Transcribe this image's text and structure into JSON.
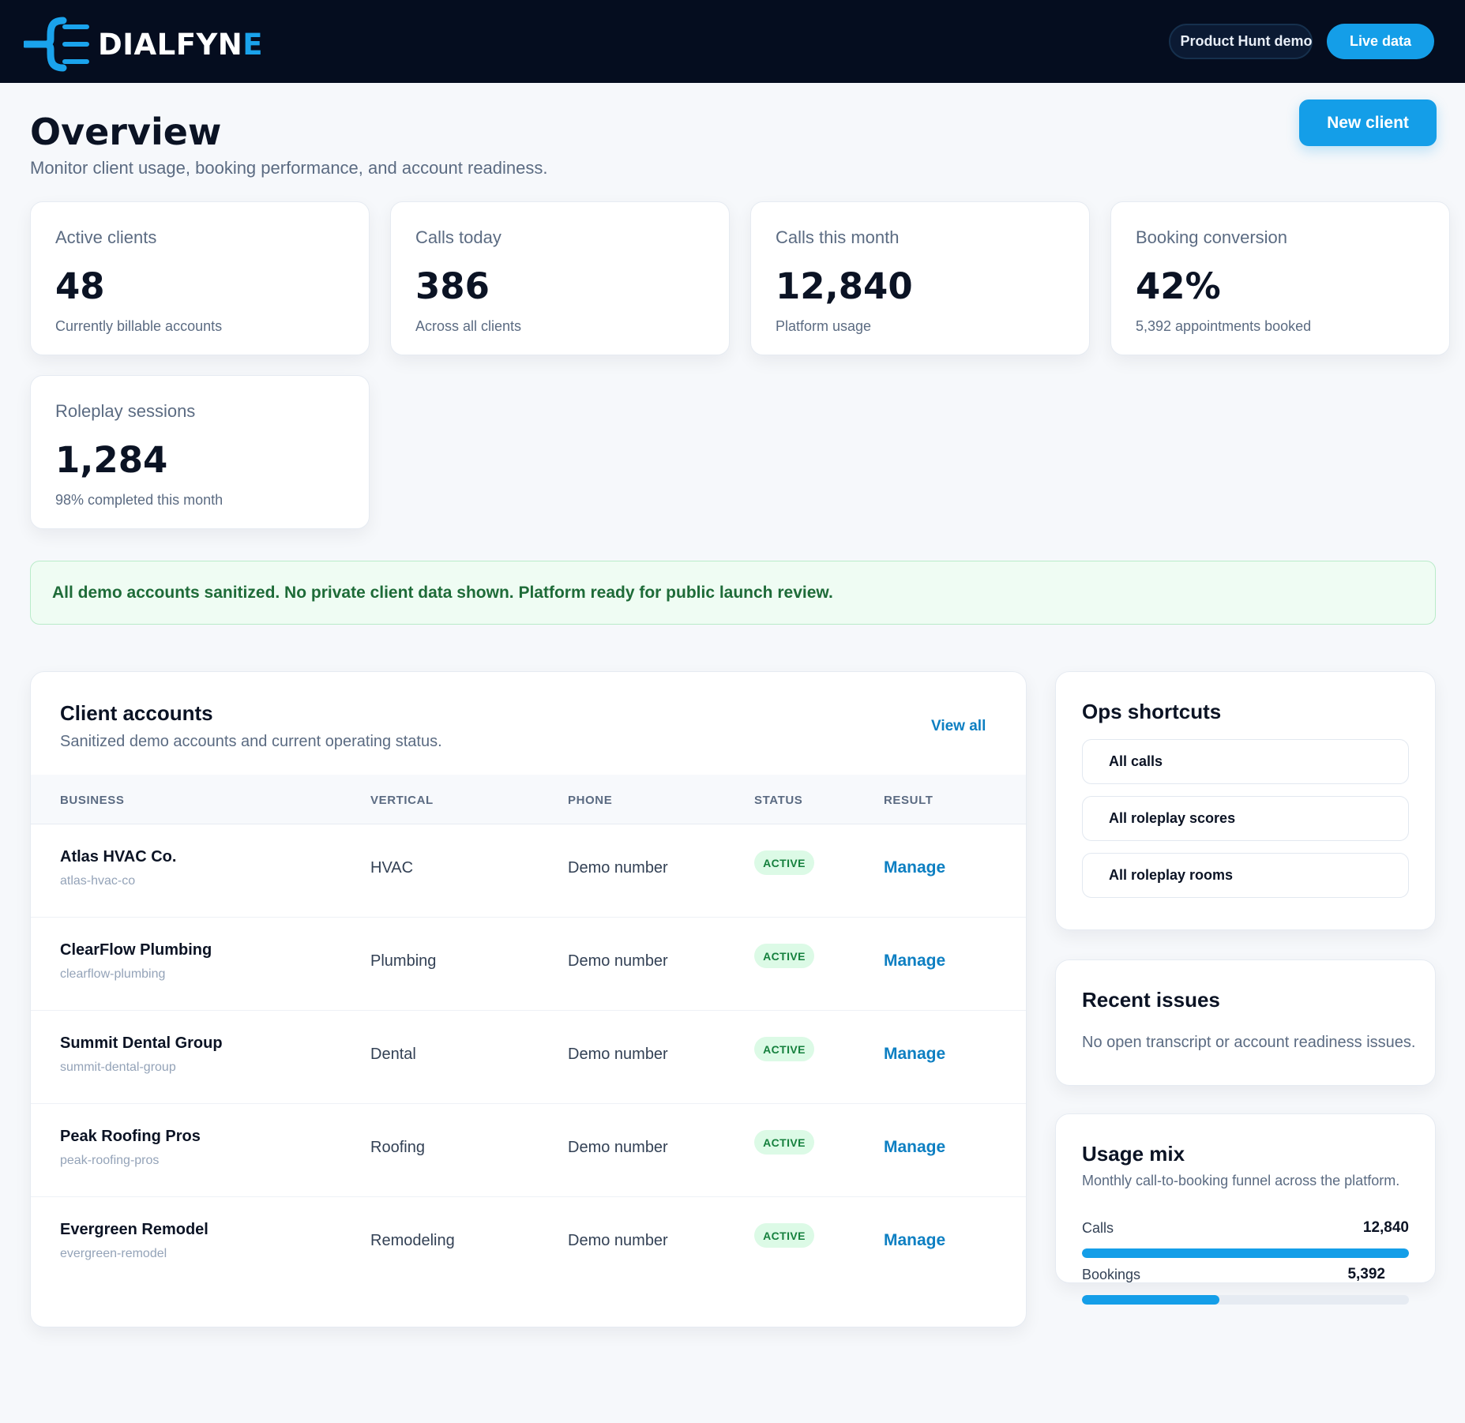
{
  "brand": {
    "name_prefix": "DIALFYN",
    "name_suffix": "E",
    "accent_color": "#1aa3ec",
    "logo_icon": "dialfyne-logo-icon"
  },
  "header": {
    "demo_label": "Product Hunt demo",
    "live_label": "Live data"
  },
  "page": {
    "title": "Overview",
    "subtitle": "Monitor client usage, booking performance, and account readiness.",
    "new_client_label": "New client"
  },
  "stats": [
    {
      "label": "Active clients",
      "value": "48",
      "note": "Currently billable accounts"
    },
    {
      "label": "Calls today",
      "value": "386",
      "note": "Across all clients"
    },
    {
      "label": "Calls this month",
      "value": "12,840",
      "note": "Platform usage"
    },
    {
      "label": "Booking conversion",
      "value": "42%",
      "note": "5,392 appointments booked"
    },
    {
      "label": "Roleplay sessions",
      "value": "1,284",
      "note": "98% completed this month"
    }
  ],
  "banner": {
    "text": "All demo accounts sanitized. No private client data shown. Platform ready for public launch review.",
    "color": "#1e6b38"
  },
  "clients": {
    "title": "Client accounts",
    "subtitle": "Sanitized demo accounts and current operating status.",
    "view_all": "View all",
    "columns": [
      "BUSINESS",
      "VERTICAL",
      "PHONE",
      "STATUS",
      "RESULT"
    ],
    "rows": [
      {
        "business": "Atlas HVAC Co.",
        "slug": "atlas-hvac-co",
        "vertical": "HVAC",
        "phone": "Demo number",
        "status": "ACTIVE",
        "action": "Manage"
      },
      {
        "business": "ClearFlow Plumbing",
        "slug": "clearflow-plumbing",
        "vertical": "Plumbing",
        "phone": "Demo number",
        "status": "ACTIVE",
        "action": "Manage"
      },
      {
        "business": "Summit Dental Group",
        "slug": "summit-dental-group",
        "vertical": "Dental",
        "phone": "Demo number",
        "status": "ACTIVE",
        "action": "Manage"
      },
      {
        "business": "Peak Roofing Pros",
        "slug": "peak-roofing-pros",
        "vertical": "Roofing",
        "phone": "Demo number",
        "status": "ACTIVE",
        "action": "Manage"
      },
      {
        "business": "Evergreen Remodel",
        "slug": "evergreen-remodel",
        "vertical": "Remodeling",
        "phone": "Demo number",
        "status": "ACTIVE",
        "action": "Manage"
      }
    ]
  },
  "ops": {
    "title": "Ops shortcuts",
    "items": [
      "All calls",
      "All roleplay scores",
      "All roleplay rooms"
    ]
  },
  "issues": {
    "title": "Recent issues",
    "text": "No open transcript or account readiness issues."
  },
  "usage": {
    "title": "Usage mix",
    "subtitle": "Monthly call-to-booking funnel across the platform.",
    "meters": [
      {
        "label": "Calls",
        "value": "12,840",
        "fraction": 1.0
      },
      {
        "label": "Bookings",
        "value": "5,392",
        "fraction": 0.42
      }
    ]
  }
}
